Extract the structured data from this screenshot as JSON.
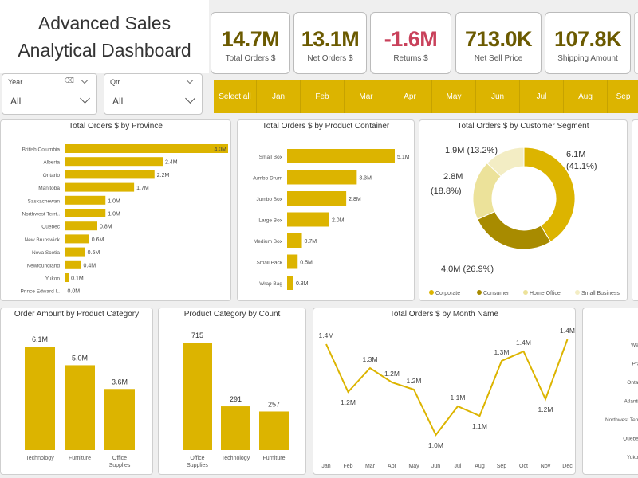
{
  "dashboard": {
    "title_line1": "Advanced Sales",
    "title_line2": "Analytical Dashboard"
  },
  "kpis": [
    {
      "value": "14.7M",
      "label": "Total Orders $",
      "negative": false
    },
    {
      "value": "13.1M",
      "label": "Net Orders $",
      "negative": false
    },
    {
      "value": "-1.6M",
      "label": "Returns $",
      "negative": true
    },
    {
      "value": "713.0K",
      "label": "Net Sell Price",
      "negative": false
    },
    {
      "value": "107.8K",
      "label": "Shipping Amount",
      "negative": false
    }
  ],
  "slicers": {
    "year": {
      "label": "Year",
      "value": "All"
    },
    "qtr": {
      "label": "Qtr",
      "value": "All"
    }
  },
  "months": [
    "Select all",
    "Jan",
    "Feb",
    "Mar",
    "Apr",
    "May",
    "Jun",
    "Jul",
    "Aug",
    "Sep"
  ],
  "colors": {
    "accent": "#dcb400",
    "dark": "#a88b00",
    "light": "#ece29a",
    "lighter": "#f3edc4",
    "negative": "#c9415b"
  },
  "chart_data": [
    {
      "type": "bar",
      "orientation": "horizontal",
      "title": "Total Orders $ by Province",
      "categories": [
        "British Columbia",
        "Alberta",
        "Ontario",
        "Manitoba",
        "Saskachewan",
        "Northwest Terrt..",
        "Quebec",
        "New Brunswick",
        "Nova Scotia",
        "Newfoundland",
        "Yukon",
        "Prince Edward I.."
      ],
      "values": [
        4.0,
        2.4,
        2.2,
        1.7,
        1.0,
        1.0,
        0.8,
        0.6,
        0.5,
        0.4,
        0.1,
        0.0
      ],
      "labels": [
        "4.0M",
        "2.4M",
        "2.2M",
        "1.7M",
        "1.0M",
        "1.0M",
        "0.8M",
        "0.6M",
        "0.5M",
        "0.4M",
        "0.1M",
        "0.0M"
      ]
    },
    {
      "type": "bar",
      "orientation": "horizontal",
      "title": "Total Orders $ by Product Container",
      "categories": [
        "Small Box",
        "Jumbo Drum",
        "Jumbo Box",
        "Large Box",
        "Medium Box",
        "Small Pack",
        "Wrap Bag"
      ],
      "values": [
        5.1,
        3.3,
        2.8,
        2.0,
        0.7,
        0.5,
        0.3
      ],
      "labels": [
        "5.1M",
        "3.3M",
        "2.8M",
        "2.0M",
        "0.7M",
        "0.5M",
        "0.3M"
      ]
    },
    {
      "type": "pie",
      "donut": true,
      "title": "Total Orders $ by Customer Segment",
      "categories": [
        "Corporate",
        "Consumer",
        "Home Office",
        "Small Business"
      ],
      "values": [
        6.1,
        4.0,
        2.8,
        1.9
      ],
      "percents": [
        41.1,
        26.9,
        18.8,
        13.2
      ],
      "labels": [
        "6.1M",
        "4.0M (26.9%)",
        "2.8M",
        "1.9M (13.2%)"
      ],
      "pct_labels": [
        "(41.1%)",
        "(18.8%)"
      ],
      "legend": "bottom"
    },
    {
      "type": "bar",
      "title": "Order Amount by Product Category",
      "categories": [
        "Technology",
        "Furniture",
        "Office Supplies"
      ],
      "values": [
        6.1,
        5.0,
        3.6
      ],
      "labels": [
        "6.1M",
        "5.0M",
        "3.6M"
      ]
    },
    {
      "type": "bar",
      "title": "Product Category by Count",
      "categories": [
        "Office Supplies",
        "Technology",
        "Furniture"
      ],
      "values": [
        715,
        291,
        257
      ],
      "labels": [
        "715",
        "291",
        "257"
      ]
    },
    {
      "type": "line",
      "title": "Total Orders $ by Month Name",
      "categories": [
        "Jan",
        "Feb",
        "Mar",
        "Apr",
        "May",
        "Jun",
        "Jul",
        "Aug",
        "Sep",
        "Oct",
        "Nov",
        "Dec"
      ],
      "values": [
        1.4,
        1.2,
        1.3,
        1.2,
        1.2,
        1.0,
        1.1,
        1.1,
        1.3,
        1.4,
        1.2,
        1.4
      ],
      "plot_values": [
        1.4,
        1.2,
        1.3,
        1.24,
        1.21,
        1.02,
        1.14,
        1.1,
        1.33,
        1.37,
        1.17,
        1.42
      ],
      "labels": [
        "1.4M",
        "1.2M",
        "1.3M",
        "1.2M",
        "1.2M",
        "1.0M",
        "1.1M",
        "1.1M",
        "1.3M",
        "1.4M",
        "1.2M",
        "1.4M"
      ]
    }
  ],
  "right_panel_partial": [
    "Wes",
    "Prai",
    "Ontari",
    "Atlantic",
    "Northwest Ten..",
    "Quebec",
    "Yukon"
  ]
}
